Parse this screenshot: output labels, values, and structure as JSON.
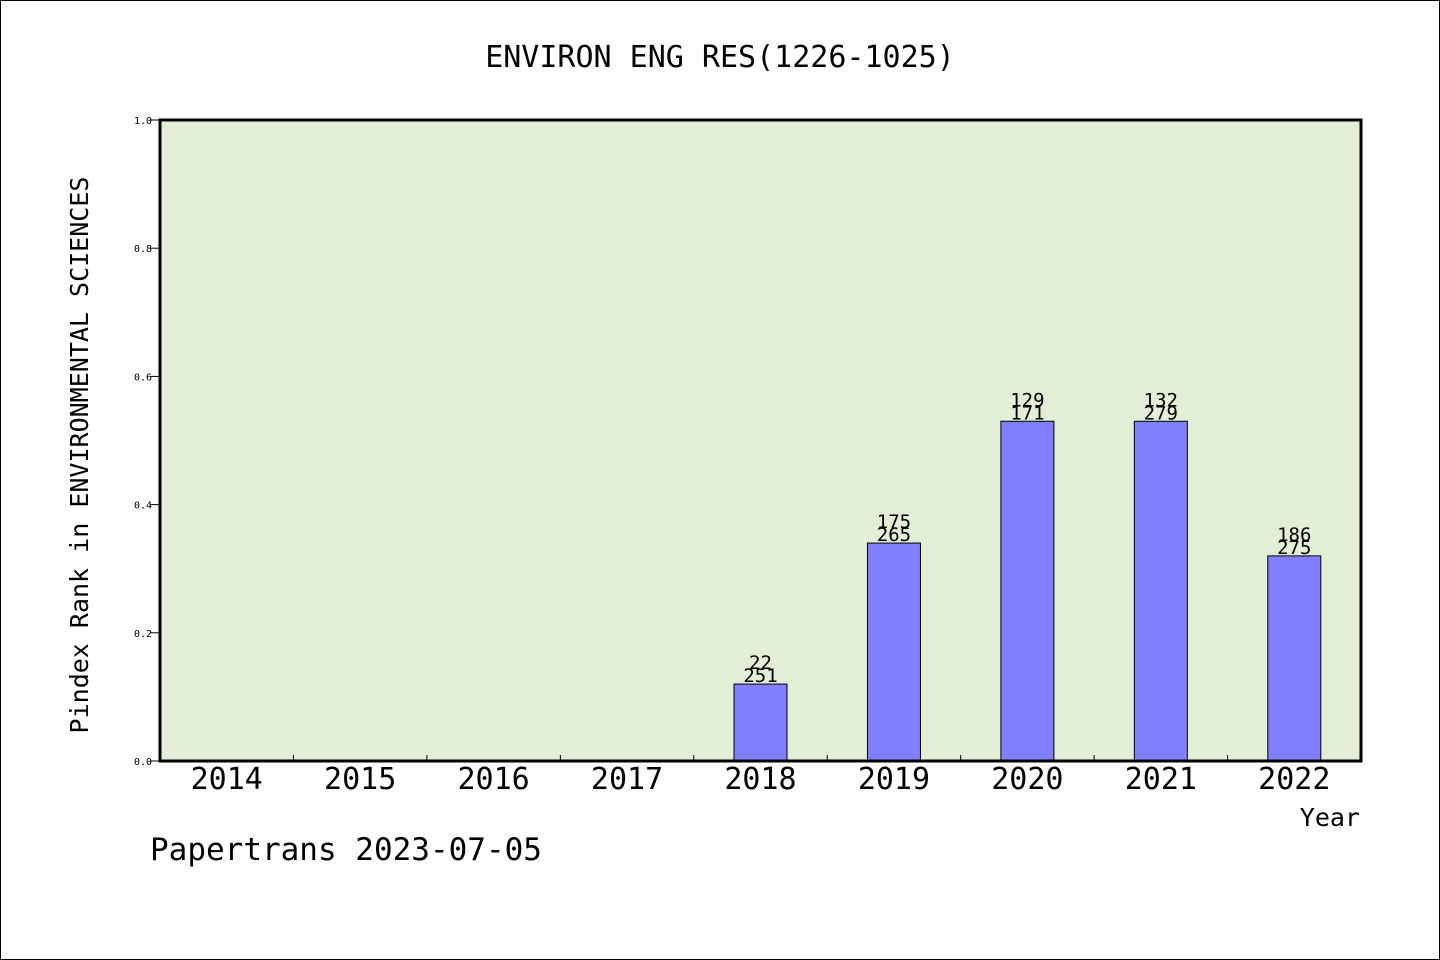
{
  "chart_data": {
    "type": "bar",
    "title": "ENVIRON ENG RES(1226-1025)",
    "xlabel": "Year",
    "ylabel": "Pindex Rank in ENVIRONMENTAL SCIENCES",
    "categories": [
      "2014",
      "2015",
      "2016",
      "2017",
      "2018",
      "2019",
      "2020",
      "2021",
      "2022"
    ],
    "values": [
      null,
      null,
      null,
      null,
      0.12,
      0.34,
      0.53,
      0.53,
      0.32
    ],
    "bar_labels_top": [
      "",
      "",
      "",
      "",
      "22",
      "175",
      "129",
      "132",
      "186"
    ],
    "bar_labels_bottom": [
      "",
      "",
      "",
      "",
      "251",
      "265",
      "171",
      "279",
      "275"
    ],
    "yticks": [
      "0.0",
      "0.2",
      "0.4",
      "0.6",
      "0.8",
      "1.0"
    ],
    "ylim": [
      0,
      1.0
    ],
    "grid": false,
    "colors": {
      "plot_background": "#e2efd6",
      "bar_fill": "#8080ff",
      "bar_stroke": "#000000"
    }
  },
  "footer": {
    "text": "Papertrans 2023-07-05"
  }
}
